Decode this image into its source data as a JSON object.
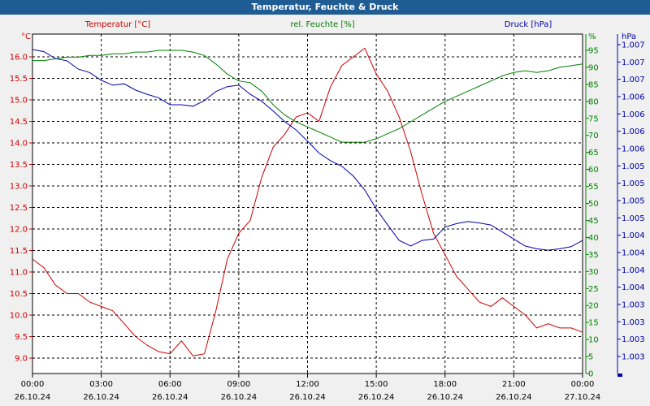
{
  "chart_data": {
    "type": "line",
    "title": "Temperatur, Feuchte & Druck",
    "legend": [
      "Temperatur [°C]",
      "rel. Feuchte [%]",
      "Druck [hPa]"
    ],
    "colors": {
      "temp": "#cc0000",
      "hum": "#008000",
      "press": "#0000aa",
      "axis": "#000000",
      "grid": "#000000"
    },
    "x_ticks": [
      {
        "time": "00:00",
        "date": "26.10.24"
      },
      {
        "time": "03:00",
        "date": "26.10.24"
      },
      {
        "time": "06:00",
        "date": "26.10.24"
      },
      {
        "time": "09:00",
        "date": "26.10.24"
      },
      {
        "time": "12:00",
        "date": "26.10.24"
      },
      {
        "time": "15:00",
        "date": "26.10.24"
      },
      {
        "time": "18:00",
        "date": "26.10.24"
      },
      {
        "time": "21:00",
        "date": "26.10.24"
      },
      {
        "time": "00:00",
        "date": "27.10.24"
      }
    ],
    "x_range_hours": [
      0,
      24
    ],
    "axes": {
      "temp": {
        "unit": "°C",
        "range": [
          8.7,
          16.6
        ],
        "ticks": [
          "16.0",
          "15.5",
          "15.0",
          "14.5",
          "14.0",
          "13.5",
          "13.0",
          "12.5",
          "12.0",
          "11.5",
          "11.0",
          "10.5",
          "10.0",
          "9.5",
          "9.0"
        ]
      },
      "hum": {
        "unit": "%",
        "range": [
          0,
          100
        ],
        "ticks": [
          "95",
          "90",
          "85",
          "80",
          "75",
          "70",
          "65",
          "60",
          "55",
          "50",
          "45",
          "40",
          "35",
          "30",
          "25",
          "20",
          "15",
          "10",
          "5",
          "0"
        ]
      },
      "press": {
        "unit": "hPa",
        "ticks": [
          "1.007",
          "1.007",
          "1.007",
          "1.006",
          "1.006",
          "1.006",
          "1.006",
          "1.005",
          "1.005",
          "1.005",
          "1.005",
          "1.004",
          "1.004",
          "1.004",
          "1.004",
          "1.003",
          "1.003",
          "1.003",
          "1.003"
        ]
      }
    },
    "series": [
      {
        "name": "Temperatur [°C]",
        "key": "temp",
        "x": [
          0,
          0.5,
          1,
          1.5,
          2,
          2.5,
          3,
          3.5,
          4,
          4.5,
          5,
          5.5,
          6,
          6.5,
          7,
          7.5,
          8,
          8.5,
          9,
          9.5,
          10,
          10.5,
          11,
          11.5,
          12,
          12.5,
          13,
          13.5,
          14,
          14.5,
          15,
          15.5,
          16,
          16.5,
          17,
          17.5,
          18,
          18.5,
          19,
          19.5,
          20,
          20.5,
          21,
          21.5,
          22,
          22.5,
          23,
          23.5,
          24
        ],
        "values": [
          11.3,
          11.1,
          10.7,
          10.5,
          10.5,
          10.3,
          10.2,
          10.1,
          9.8,
          9.5,
          9.3,
          9.15,
          9.1,
          9.4,
          9.05,
          9.1,
          10.1,
          11.3,
          11.9,
          12.2,
          13.2,
          13.9,
          14.2,
          14.6,
          14.7,
          14.5,
          15.3,
          15.8,
          16.0,
          16.2,
          15.6,
          15.2,
          14.6,
          13.8,
          12.8,
          11.9,
          11.4,
          10.9,
          10.6,
          10.3,
          10.2,
          10.4,
          10.2,
          10.0,
          9.7,
          9.8,
          9.7,
          9.7,
          9.6
        ]
      },
      {
        "name": "rel. Feuchte [%]",
        "key": "hum",
        "x": [
          0,
          0.5,
          1,
          1.5,
          2,
          2.5,
          3,
          3.5,
          4,
          4.5,
          5,
          5.5,
          6,
          6.5,
          7,
          7.5,
          8,
          8.5,
          9,
          9.5,
          10,
          10.5,
          11,
          11.5,
          12,
          12.5,
          13,
          13.5,
          14,
          14.5,
          15,
          15.5,
          16,
          16.5,
          17,
          17.5,
          18,
          18.5,
          19,
          19.5,
          20,
          20.5,
          21,
          21.5,
          22,
          22.5,
          23,
          23.5,
          24
        ],
        "values": [
          92,
          92,
          92.5,
          93,
          93,
          93.5,
          93.5,
          94,
          94,
          94.5,
          94.5,
          95,
          95,
          95,
          94.5,
          93.5,
          91,
          88,
          86,
          85.5,
          83,
          79,
          76,
          74,
          72.5,
          71,
          69.5,
          68,
          68,
          68,
          69,
          70.5,
          72,
          74,
          76,
          78,
          80,
          81.5,
          83,
          84.5,
          86,
          87.5,
          88.5,
          89,
          88.5,
          89,
          90,
          90.5,
          91
        ]
      },
      {
        "name": "Druck [hPa]",
        "key": "press",
        "x": [
          0,
          0.5,
          1,
          1.5,
          2,
          2.5,
          3,
          3.5,
          4,
          4.5,
          5,
          5.5,
          6,
          6.5,
          7,
          7.5,
          8,
          8.5,
          9,
          9.5,
          10,
          10.5,
          11,
          11.5,
          12,
          12.5,
          13,
          13.5,
          14,
          14.5,
          15,
          15.5,
          16,
          16.5,
          17,
          17.5,
          18,
          18.5,
          19,
          19.5,
          20,
          20.5,
          21,
          21.5,
          22,
          22.5,
          23,
          23.5,
          24
        ],
        "values": [
          1.00721,
          1.00718,
          1.00708,
          1.00705,
          1.00693,
          1.00688,
          1.00677,
          1.0067,
          1.00672,
          1.00663,
          1.00657,
          1.00652,
          1.00642,
          1.00642,
          1.0064,
          1.00648,
          1.00661,
          1.00668,
          1.0067,
          1.00657,
          1.00647,
          1.00633,
          1.00618,
          1.00606,
          1.0059,
          1.00573,
          1.00562,
          1.00554,
          1.0054,
          1.0052,
          1.00493,
          1.0047,
          1.00448,
          1.0044,
          1.00448,
          1.0045,
          1.00467,
          1.00472,
          1.00475,
          1.00473,
          1.0047,
          1.0046,
          1.0045,
          1.0044,
          1.00436,
          1.00434,
          1.00436,
          1.00439,
          1.00448
        ]
      }
    ]
  }
}
